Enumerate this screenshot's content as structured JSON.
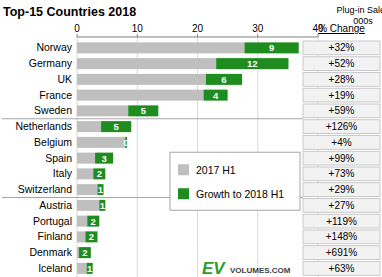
{
  "chart_data": {
    "type": "bar",
    "orientation": "horizontal",
    "stacked": true,
    "title": "Top-15 Countries 2018",
    "x_label": [
      "Plug-in Sales",
      "000s"
    ],
    "categories": [
      "Norway",
      "Germany",
      "UK",
      "France",
      "Sweden",
      "Netherlands",
      "Belgium",
      "Spain",
      "Italy",
      "Switzerland",
      "Austria",
      "Portugal",
      "Finland",
      "Denmark",
      "Iceland"
    ],
    "series": [
      {
        "name": "2017 H1",
        "color": "#bfbfbf",
        "values": [
          27.8,
          23.1,
          21.4,
          21.0,
          8.5,
          4.0,
          8.0,
          3.0,
          2.7,
          3.4,
          3.7,
          1.7,
          1.4,
          0.3,
          1.6
        ]
      },
      {
        "name": "Growth to 2018 H1",
        "color": "#1e8c1e",
        "data_labels": true,
        "values": [
          9,
          12,
          6,
          4,
          5,
          5,
          0.3,
          3,
          2,
          1,
          1,
          2,
          2,
          2,
          1
        ],
        "value_labels": [
          "9",
          "12",
          "6",
          "4",
          "5",
          "5",
          "0",
          "3",
          "2",
          "1",
          "1",
          "2",
          "2",
          "2",
          "1"
        ]
      }
    ],
    "change_header": "% Change",
    "change_labels": [
      "+32%",
      "+52%",
      "+28%",
      "+19%",
      "+59%",
      "+126%",
      "+4%",
      "+99%",
      "+73%",
      "+29%",
      "+27%",
      "+119%",
      "+148%",
      "+691%",
      "+63%"
    ],
    "xlim": [
      0,
      40
    ],
    "xticks": [
      0,
      10,
      20,
      30,
      40
    ],
    "grid": true,
    "legend": "right",
    "logo": [
      "EV",
      "VOLUMES.COM"
    ]
  }
}
